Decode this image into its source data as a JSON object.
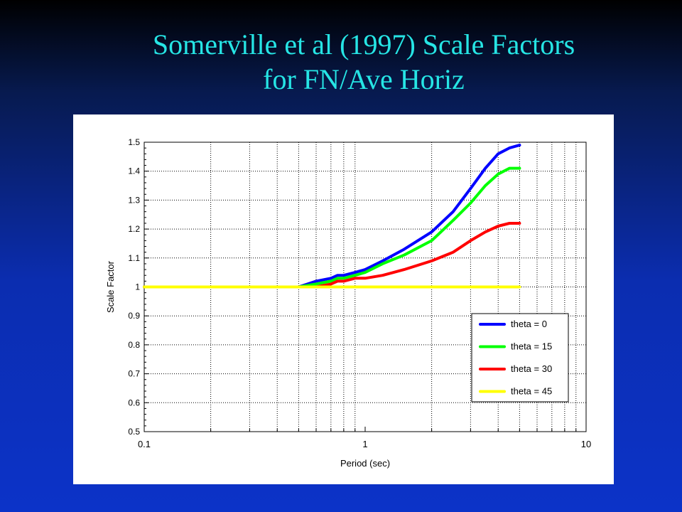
{
  "slide": {
    "title_line1": "Somerville et al (1997) Scale Factors",
    "title_line2": "for FN/Ave Horiz",
    "title_color": "#26e5e5"
  },
  "chart_data": {
    "type": "line",
    "xlabel": "Period (sec)",
    "ylabel": "Scale Factor",
    "xscale": "log",
    "xlim": [
      0.1,
      10
    ],
    "ylim": [
      0.5,
      1.5
    ],
    "x_ticks": [
      "0.1",
      "1",
      "10"
    ],
    "y_ticks": [
      "0.5",
      "0.6",
      "0.7",
      "0.8",
      "0.9",
      "1",
      "1.1",
      "1.2",
      "1.3",
      "1.4",
      "1.5"
    ],
    "grid": true,
    "legend_position": "bottom-right",
    "series": [
      {
        "name": "theta = 0",
        "color": "#0000ff",
        "x": [
          0.1,
          0.5,
          0.6,
          0.7,
          0.75,
          0.8,
          0.9,
          1.0,
          1.2,
          1.5,
          2.0,
          2.5,
          3.0,
          3.5,
          4.0,
          4.5,
          5.0
        ],
        "y": [
          1.0,
          1.0,
          1.02,
          1.03,
          1.04,
          1.04,
          1.05,
          1.06,
          1.09,
          1.13,
          1.19,
          1.26,
          1.34,
          1.41,
          1.46,
          1.48,
          1.49
        ]
      },
      {
        "name": "theta = 15",
        "color": "#00ff00",
        "x": [
          0.1,
          0.5,
          0.6,
          0.7,
          0.75,
          0.8,
          0.9,
          1.0,
          1.2,
          1.5,
          2.0,
          2.5,
          3.0,
          3.5,
          4.0,
          4.5,
          5.0
        ],
        "y": [
          1.0,
          1.0,
          1.01,
          1.02,
          1.03,
          1.03,
          1.04,
          1.05,
          1.08,
          1.11,
          1.16,
          1.23,
          1.29,
          1.35,
          1.39,
          1.41,
          1.41
        ]
      },
      {
        "name": "theta = 30",
        "color": "#ff0000",
        "x": [
          0.1,
          0.5,
          0.6,
          0.7,
          0.75,
          0.8,
          0.9,
          1.0,
          1.2,
          1.5,
          2.0,
          2.5,
          3.0,
          3.5,
          4.0,
          4.5,
          5.0
        ],
        "y": [
          1.0,
          1.0,
          1.0,
          1.01,
          1.02,
          1.02,
          1.03,
          1.03,
          1.04,
          1.06,
          1.09,
          1.12,
          1.16,
          1.19,
          1.21,
          1.22,
          1.22
        ]
      },
      {
        "name": "theta = 45",
        "color": "#ffff00",
        "x": [
          0.1,
          5.0
        ],
        "y": [
          1.0,
          1.0
        ]
      }
    ]
  }
}
